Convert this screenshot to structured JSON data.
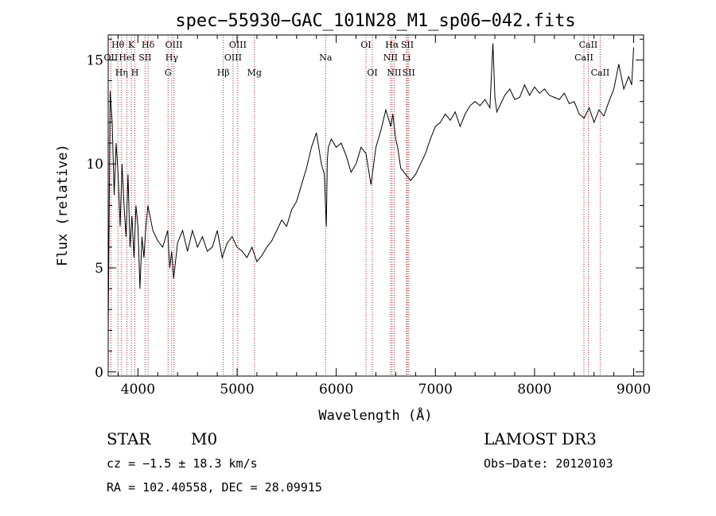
{
  "chart_data": {
    "type": "line",
    "title": "spec−55930−GAC_101N28_M1_sp06−042.fits",
    "xlabel": "Wavelength (Å)",
    "ylabel": "Flux (relative)",
    "xlim": [
      3700,
      9100
    ],
    "ylim": [
      -0.2,
      16.2
    ],
    "xticks": [
      4000,
      5000,
      6000,
      7000,
      8000,
      9000
    ],
    "yticks": [
      0,
      5,
      10,
      15
    ],
    "series": [
      {
        "x": [
          3700,
          3720,
          3740,
          3760,
          3780,
          3800,
          3820,
          3840,
          3860,
          3880,
          3900,
          3920,
          3940,
          3960,
          3980,
          4000,
          4020,
          4040,
          4060,
          4080,
          4100,
          4150,
          4200,
          4250,
          4300,
          4320,
          4340,
          4360,
          4400,
          4450,
          4500,
          4550,
          4600,
          4650,
          4700,
          4750,
          4800,
          4850,
          4900,
          4950,
          5000,
          5050,
          5100,
          5150,
          5200,
          5250,
          5300,
          5350,
          5400,
          5450,
          5500,
          5550,
          5600,
          5650,
          5700,
          5750,
          5800,
          5850,
          5880,
          5900,
          5910,
          5920,
          5950,
          6000,
          6050,
          6100,
          6150,
          6200,
          6250,
          6300,
          6350,
          6400,
          6450,
          6500,
          6550,
          6570,
          6600,
          6620,
          6650,
          6700,
          6750,
          6800,
          6850,
          6900,
          6950,
          7000,
          7050,
          7100,
          7150,
          7200,
          7250,
          7300,
          7350,
          7400,
          7450,
          7500,
          7550,
          7580,
          7600,
          7620,
          7650,
          7700,
          7750,
          7800,
          7850,
          7900,
          7950,
          8000,
          8050,
          8100,
          8150,
          8200,
          8250,
          8300,
          8350,
          8400,
          8450,
          8500,
          8550,
          8600,
          8650,
          8700,
          8750,
          8800,
          8850,
          8900,
          8950,
          8980,
          9000
        ],
        "y": [
          2.0,
          13.5,
          12.0,
          8.5,
          11.0,
          9.5,
          7.0,
          10.0,
          8.0,
          6.5,
          9.5,
          6.0,
          7.5,
          5.5,
          8.0,
          7.0,
          4.0,
          6.5,
          5.5,
          7.0,
          8.0,
          6.8,
          6.3,
          6.0,
          6.8,
          5.0,
          5.8,
          4.5,
          6.2,
          6.8,
          5.8,
          6.8,
          6.0,
          6.5,
          5.8,
          6.0,
          6.8,
          5.5,
          6.2,
          6.5,
          6.0,
          5.8,
          5.5,
          6.0,
          5.3,
          5.6,
          6.0,
          6.3,
          6.8,
          7.3,
          7.0,
          7.8,
          8.2,
          9.0,
          9.8,
          10.8,
          11.5,
          10.0,
          9.5,
          7.0,
          10.2,
          10.8,
          11.2,
          10.8,
          11.0,
          10.4,
          9.6,
          10.0,
          10.8,
          10.5,
          9.0,
          10.8,
          11.6,
          12.6,
          11.8,
          12.4,
          11.2,
          10.8,
          9.8,
          9.5,
          9.2,
          9.5,
          10.0,
          10.5,
          11.2,
          11.8,
          12.0,
          12.4,
          12.1,
          12.5,
          11.8,
          12.4,
          12.8,
          13.0,
          12.8,
          13.1,
          12.7,
          15.8,
          13.2,
          12.5,
          12.8,
          13.3,
          13.6,
          13.1,
          13.2,
          13.8,
          13.3,
          13.7,
          13.4,
          13.6,
          13.3,
          13.2,
          13.1,
          13.4,
          12.9,
          13.0,
          12.4,
          12.2,
          12.7,
          12.0,
          12.6,
          12.3,
          13.0,
          13.6,
          14.8,
          13.6,
          14.2,
          13.8,
          15.6
        ]
      }
    ],
    "line_markers": [
      {
        "label": "Hθ",
        "x": 3798,
        "row": 1
      },
      {
        "label": "OII",
        "x": 3727,
        "row": 2
      },
      {
        "label": "Hη",
        "x": 3835,
        "row": 3
      },
      {
        "label": "HeI",
        "x": 3889,
        "row": 2
      },
      {
        "label": "K",
        "x": 3934,
        "row": 1
      },
      {
        "label": "SII",
        "x": 4072,
        "row": 2
      },
      {
        "label": "H",
        "x": 3969,
        "row": 3
      },
      {
        "label": "Hδ",
        "x": 4102,
        "row": 1
      },
      {
        "label": "OIII",
        "x": 4363,
        "row": 1
      },
      {
        "label": "Hγ",
        "x": 4341,
        "row": 2
      },
      {
        "label": "G",
        "x": 4304,
        "row": 3
      },
      {
        "label": "OIII",
        "x": 5007,
        "row": 1
      },
      {
        "label": "OIII",
        "x": 4959,
        "row": 2
      },
      {
        "label": "Hβ",
        "x": 4861,
        "row": 3
      },
      {
        "label": "Mg",
        "x": 5175,
        "row": 3
      },
      {
        "label": "Na",
        "x": 5893,
        "row": 2
      },
      {
        "label": "OI",
        "x": 6300,
        "row": 1
      },
      {
        "label": "OI",
        "x": 6364,
        "row": 3
      },
      {
        "label": "Hα",
        "x": 6563,
        "row": 1
      },
      {
        "label": "NII",
        "x": 6548,
        "row": 2
      },
      {
        "label": "NII",
        "x": 6584,
        "row": 3
      },
      {
        "label": "SII",
        "x": 6717,
        "row": 1
      },
      {
        "label": "Li",
        "x": 6708,
        "row": 2
      },
      {
        "label": "SII",
        "x": 6731,
        "row": 3
      },
      {
        "label": "CaII",
        "x": 8542,
        "row": 1
      },
      {
        "label": "CaII",
        "x": 8498,
        "row": 2
      },
      {
        "label": "CaII",
        "x": 8662,
        "row": 3
      }
    ]
  },
  "info": {
    "object_class": "STAR",
    "subclass": "M0",
    "survey": "LAMOST DR3",
    "redshift_text": "cz = −1.5 ± 18.3 km/s",
    "obs_date_text": "Obs−Date: 20120103",
    "coords_text": "RA = 102.40558, DEC =  28.09915"
  },
  "colors": {
    "spectrum": "#000000",
    "marker_line": "#b22222",
    "axes": "#000000"
  }
}
